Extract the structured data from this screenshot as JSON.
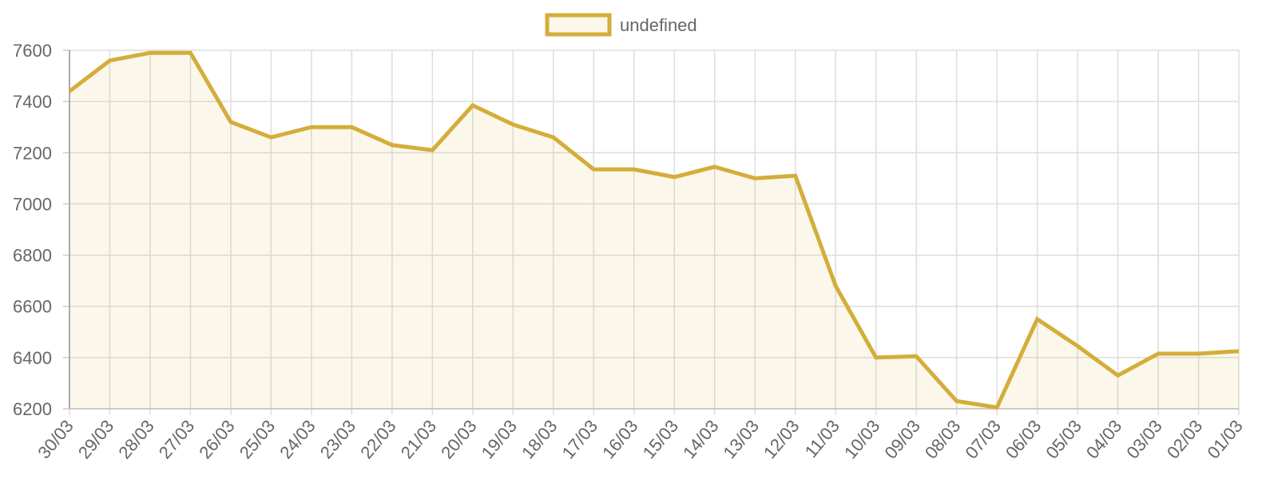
{
  "chart_data": {
    "type": "line",
    "categories": [
      "30/03",
      "29/03",
      "28/03",
      "27/03",
      "26/03",
      "25/03",
      "24/03",
      "23/03",
      "22/03",
      "21/03",
      "20/03",
      "19/03",
      "18/03",
      "17/03",
      "16/03",
      "15/03",
      "14/03",
      "13/03",
      "12/03",
      "11/03",
      "10/03",
      "09/03",
      "08/03",
      "07/03",
      "06/03",
      "05/03",
      "04/03",
      "03/03",
      "02/03",
      "01/03"
    ],
    "series": [
      {
        "name": "undefined",
        "color": "#d4ad3a",
        "values": [
          7440,
          7560,
          7590,
          7590,
          7320,
          7260,
          7300,
          7300,
          7230,
          7210,
          7385,
          7310,
          7260,
          7135,
          7135,
          7105,
          7145,
          7100,
          7110,
          6680,
          6400,
          6405,
          6230,
          6205,
          6550,
          6445,
          6330,
          6415,
          6415,
          6425
        ]
      }
    ],
    "ylim": [
      6200,
      7600
    ],
    "yticks": [
      6200,
      6400,
      6600,
      6800,
      7000,
      7200,
      7400,
      7600
    ],
    "grid": true,
    "fill": true,
    "legend": "top"
  }
}
